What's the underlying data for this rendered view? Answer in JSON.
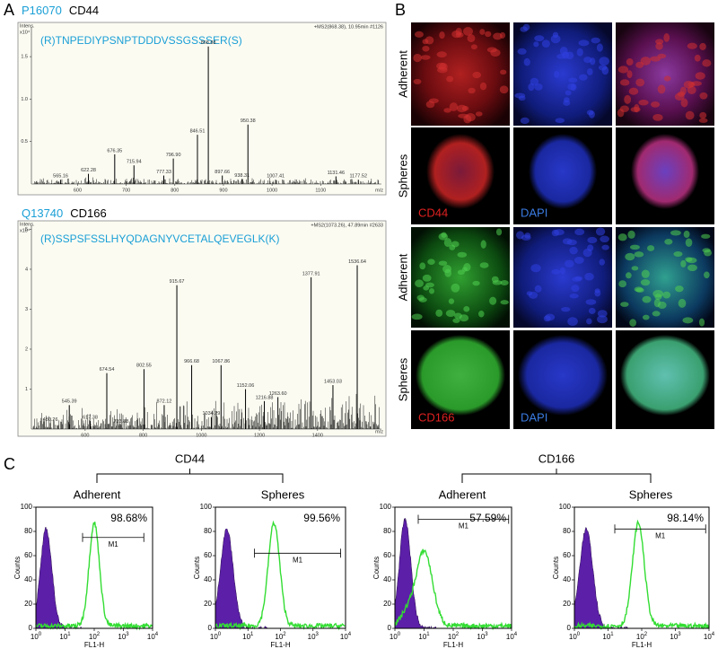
{
  "panel_a": {
    "label": "A",
    "spectra": [
      {
        "accession": "P16070",
        "protein": "CD44",
        "peptide": "(R)TNPEDIYPSNPTDDDVSSGSSSER(S)",
        "scan": "+MS2(868.38), 10.95min #1126",
        "y_title": "Intens.",
        "y_scale": "x10⁴",
        "x_title": "m/z",
        "xlim": [
          505,
          1225
        ],
        "xticks": [
          600,
          700,
          800,
          900,
          1000,
          1100
        ],
        "ylim": [
          0,
          1.85
        ],
        "yticks": [
          0.5,
          {
            "value": 1,
            "label": "1.0"
          },
          1.5
        ],
        "peaks": [
          {
            "mz": "565.16",
            "height": 0.05
          },
          {
            "mz": "622.28",
            "height": 0.12
          },
          {
            "mz": "676.35",
            "height": 0.35
          },
          {
            "mz": "715.94",
            "height": 0.22
          },
          {
            "mz": "777.33",
            "height": 0.1
          },
          {
            "mz": "796.90",
            "height": 0.3
          },
          {
            "mz": "846.51",
            "height": 0.58
          },
          {
            "mz": "868.88",
            "height": 1.62
          },
          {
            "mz": "897.66",
            "height": 0.1
          },
          {
            "mz": "938.31",
            "height": 0.06
          },
          {
            "mz": "950.38",
            "height": 0.7
          },
          {
            "mz": "1007.41",
            "height": 0.05
          },
          {
            "mz": "1131.46",
            "height": 0.09
          },
          {
            "mz": "1177.52",
            "height": 0.05
          }
        ]
      },
      {
        "accession": "Q13740",
        "protein": "CD166",
        "peptide": "(R)SSPSFSSLHYQDAGNYVCETALQEVEGLK(K)",
        "scan": "+MS2(1073.26), 47.89min #2633",
        "y_title": "Intens.",
        "y_scale": "x10⁴",
        "x_title": "m/z",
        "xlim": [
          415,
          1620
        ],
        "xticks": [
          600,
          800,
          1000,
          1200,
          1400
        ],
        "ylim": [
          0,
          5.1
        ],
        "yticks": [
          1,
          2,
          3,
          4,
          5
        ],
        "peaks": [
          {
            "mz": "480.26",
            "height": 0.15
          },
          {
            "mz": "545.39",
            "height": 0.6
          },
          {
            "mz": "617.38",
            "height": 0.2
          },
          {
            "mz": "674.54",
            "height": 1.4
          },
          {
            "mz": "723.88",
            "height": 0.1
          },
          {
            "mz": "802.55",
            "height": 1.5
          },
          {
            "mz": "872.12",
            "height": 0.6
          },
          {
            "mz": "915.67",
            "height": 3.6
          },
          {
            "mz": "966.68",
            "height": 1.6
          },
          {
            "mz": "1034.29",
            "height": 0.3
          },
          {
            "mz": "1067.86",
            "height": 1.6
          },
          {
            "mz": "1152.06",
            "height": 1.0
          },
          {
            "mz": "1216.88",
            "height": 0.7
          },
          {
            "mz": "1263.60",
            "height": 0.8
          },
          {
            "mz": "1377.91",
            "height": 3.8
          },
          {
            "mz": "1453.03",
            "height": 1.1
          },
          {
            "mz": "1536.64",
            "height": 4.1
          }
        ]
      }
    ]
  },
  "panel_b": {
    "label": "B",
    "rows": [
      {
        "label": "Adherent"
      },
      {
        "label": "Spheres",
        "stains": [
          "CD44",
          "DAPI"
        ]
      },
      {
        "label": "Adherent"
      },
      {
        "label": "Spheres",
        "stains": [
          "CD166",
          "DAPI"
        ]
      }
    ]
  },
  "panel_c": {
    "label": "C",
    "gate_label": "M1",
    "y_title": "Counts",
    "x_title": "FL1-H",
    "yticks": [
      0,
      20,
      40,
      60,
      80,
      100
    ],
    "xticks": [
      {
        "base": "10",
        "exp": "0"
      },
      {
        "base": "10",
        "exp": "1"
      },
      {
        "base": "10",
        "exp": "2"
      },
      {
        "base": "10",
        "exp": "3"
      },
      {
        "base": "10",
        "exp": "4"
      }
    ],
    "groups": [
      {
        "title": "CD44",
        "plots": [
          {
            "condition": "Adherent",
            "percent": "98.68%"
          },
          {
            "condition": "Spheres",
            "percent": "99.56%"
          }
        ]
      },
      {
        "title": "CD166",
        "plots": [
          {
            "condition": "Adherent",
            "percent": "57.59%"
          },
          {
            "condition": "Spheres",
            "percent": "98.14%"
          }
        ]
      }
    ]
  }
}
